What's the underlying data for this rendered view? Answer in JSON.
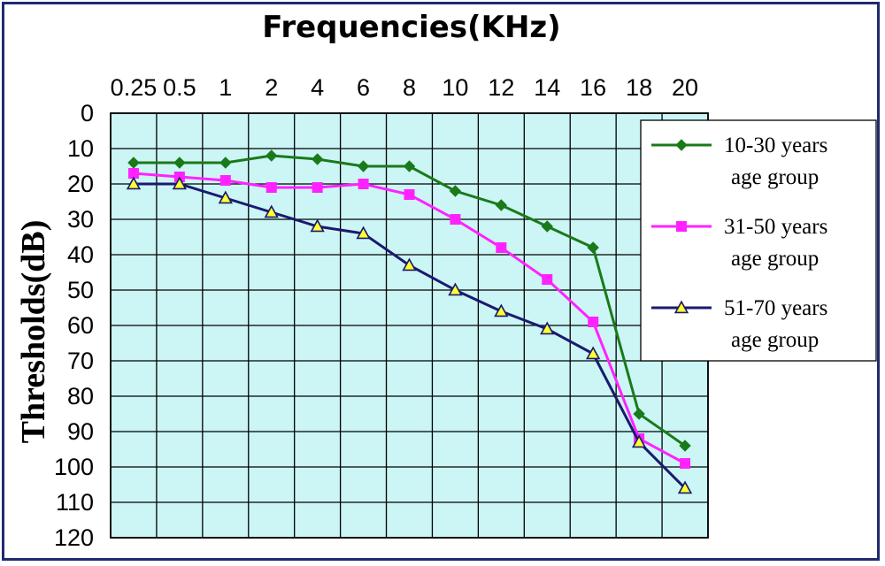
{
  "chart_data": {
    "type": "line",
    "title": "Frequencies(KHz)",
    "xlabel": "Frequencies(KHz)",
    "ylabel": "Thresholds(dB)",
    "categories": [
      "0.25",
      "0.5",
      "1",
      "2",
      "4",
      "6",
      "8",
      "10",
      "12",
      "14",
      "16",
      "18",
      "20"
    ],
    "ylim": [
      0,
      120
    ],
    "y_inverted": true,
    "y_ticks": [
      0,
      10,
      20,
      30,
      40,
      50,
      60,
      70,
      80,
      90,
      100,
      110,
      120
    ],
    "x_axis_position": "top",
    "grid": true,
    "legend_position": "right",
    "series": [
      {
        "name": "10-30 years age group",
        "color": "#1a7a1a",
        "marker": "diamond",
        "values": [
          14,
          14,
          14,
          12,
          13,
          15,
          15,
          22,
          26,
          32,
          38,
          85,
          94
        ]
      },
      {
        "name": "31-50 years age group",
        "color": "#ff22ff",
        "marker": "square",
        "values": [
          17,
          18,
          19,
          21,
          21,
          20,
          23,
          30,
          38,
          47,
          59,
          92,
          99
        ]
      },
      {
        "name": "51-70 years age group",
        "color": "#1a1a6e",
        "marker": "triangle",
        "values": [
          20,
          20,
          24,
          28,
          32,
          34,
          43,
          50,
          56,
          61,
          68,
          93,
          106
        ]
      }
    ]
  },
  "legend": [
    {
      "line1": "10-30 years",
      "line2": "age group"
    },
    {
      "line1": "31-50 years",
      "line2": "age group"
    },
    {
      "line1": "51-70 years",
      "line2": "age group"
    }
  ],
  "colors": {
    "plot_background": "#ccf5f5",
    "grid": "#000000",
    "frame": "#1f2a6e",
    "triangle_fill": "#ffff33"
  }
}
